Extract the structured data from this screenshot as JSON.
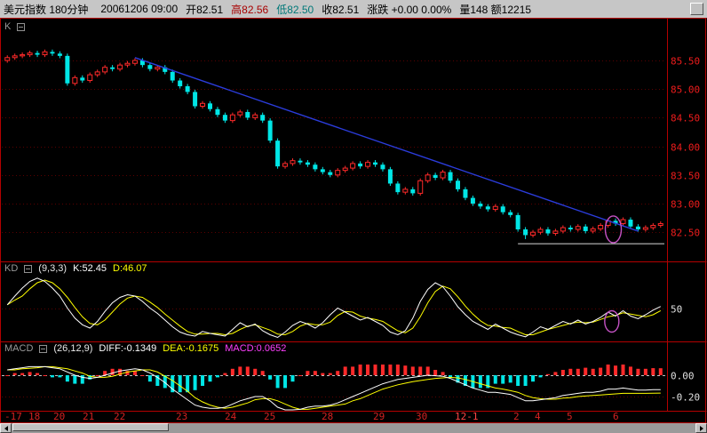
{
  "titlebar": {
    "instrument": "美元指数 180分钟",
    "datetime": "20061206 09:00",
    "open": "开82.51",
    "high": "高82.56",
    "low": "低82.50",
    "close": "收82.51",
    "change": "涨跌 +0.00 0.00%",
    "volume": "量148 额12215"
  },
  "panels": {
    "k": {
      "label": "K"
    },
    "kd": {
      "label": "KD",
      "params": "(9,3,3)",
      "k_value": "K:52.45",
      "d_value": "D:46.07"
    },
    "macd": {
      "label": "MACD",
      "params": "(26,12,9)",
      "diff_value": "DIFF:-0.1349",
      "dea_value": "DEA:-0.1675",
      "macd_value": "MACD:0.0652"
    }
  },
  "colors": {
    "background": "#000000",
    "frame": "#b40000",
    "grid": "#5a0000",
    "up": "#ff2a2a",
    "down": "#00e6e6",
    "trendline": "#2b3cdc",
    "annotation": "#c452c4",
    "k_line": "#ffffff",
    "d_line": "#ffff00",
    "diff_line": "#ffffff",
    "dea_line": "#ffff00",
    "hist_pos": "#ff2a2a",
    "hist_neg": "#00e6e6",
    "axis_text": "#ee1c1c",
    "date_text": "#d42222",
    "date_highlight": "#ff4444",
    "support_line": "#d8d8d8"
  },
  "chart_data": [
    {
      "type": "candlestick",
      "title": "美元指数 180分钟 K线",
      "ylim": [
        82.0,
        86.2
      ],
      "y_axis": [
        {
          "label": "85.50",
          "value": 85.5
        },
        {
          "label": "85.00",
          "value": 85.0
        },
        {
          "label": "84.50",
          "value": 84.5
        },
        {
          "label": "84.00",
          "value": 84.0
        },
        {
          "label": "83.50",
          "value": 83.5
        },
        {
          "label": "83.00",
          "value": 83.0
        },
        {
          "label": "82.50",
          "value": 82.5
        }
      ],
      "candles": [
        [
          85.5,
          85.59,
          85.46,
          85.55
        ],
        [
          85.55,
          85.62,
          85.51,
          85.58
        ],
        [
          85.58,
          85.64,
          85.54,
          85.6
        ],
        [
          85.6,
          85.67,
          85.56,
          85.63
        ],
        [
          85.63,
          85.67,
          85.56,
          85.6
        ],
        [
          85.6,
          85.69,
          85.56,
          85.65
        ],
        [
          85.65,
          85.69,
          85.58,
          85.62
        ],
        [
          85.62,
          85.66,
          85.54,
          85.58
        ],
        [
          85.58,
          85.62,
          85.06,
          85.1
        ],
        [
          85.1,
          85.24,
          85.06,
          85.2
        ],
        [
          85.2,
          85.24,
          85.11,
          85.15
        ],
        [
          85.15,
          85.29,
          85.11,
          85.25
        ],
        [
          85.25,
          85.34,
          85.21,
          85.3
        ],
        [
          85.3,
          85.42,
          85.26,
          85.38
        ],
        [
          85.38,
          85.42,
          85.31,
          85.35
        ],
        [
          85.35,
          85.46,
          85.31,
          85.42
        ],
        [
          85.42,
          85.49,
          85.38,
          85.45
        ],
        [
          85.45,
          85.54,
          85.41,
          85.5
        ],
        [
          85.5,
          85.54,
          85.38,
          85.42
        ],
        [
          85.42,
          85.46,
          85.31,
          85.35
        ],
        [
          85.35,
          85.42,
          85.31,
          85.38
        ],
        [
          85.38,
          85.42,
          85.26,
          85.3
        ],
        [
          85.3,
          85.34,
          85.11,
          85.15
        ],
        [
          85.15,
          85.19,
          85.01,
          85.05
        ],
        [
          85.05,
          85.09,
          84.91,
          84.95
        ],
        [
          84.95,
          84.99,
          84.66,
          84.7
        ],
        [
          84.7,
          84.79,
          84.66,
          84.75
        ],
        [
          84.75,
          84.79,
          84.61,
          84.65
        ],
        [
          84.65,
          84.69,
          84.51,
          84.55
        ],
        [
          84.55,
          84.59,
          84.41,
          84.45
        ],
        [
          84.45,
          84.59,
          84.41,
          84.55
        ],
        [
          84.55,
          84.64,
          84.51,
          84.6
        ],
        [
          84.6,
          84.64,
          84.46,
          84.5
        ],
        [
          84.5,
          84.59,
          84.46,
          84.55
        ],
        [
          84.55,
          84.59,
          84.41,
          84.45
        ],
        [
          84.45,
          84.49,
          84.06,
          84.1
        ],
        [
          84.1,
          84.14,
          83.61,
          83.65
        ],
        [
          83.65,
          83.74,
          83.61,
          83.7
        ],
        [
          83.7,
          83.79,
          83.66,
          83.75
        ],
        [
          83.75,
          83.79,
          83.68,
          83.72
        ],
        [
          83.72,
          83.76,
          83.64,
          83.68
        ],
        [
          83.68,
          83.72,
          83.56,
          83.6
        ],
        [
          83.6,
          83.64,
          83.51,
          83.55
        ],
        [
          83.55,
          83.59,
          83.46,
          83.5
        ],
        [
          83.5,
          83.62,
          83.46,
          83.58
        ],
        [
          83.58,
          83.66,
          83.54,
          83.62
        ],
        [
          83.62,
          83.74,
          83.58,
          83.7
        ],
        [
          83.7,
          83.74,
          83.61,
          83.65
        ],
        [
          83.65,
          83.76,
          83.61,
          83.72
        ],
        [
          83.72,
          83.76,
          83.64,
          83.68
        ],
        [
          83.68,
          83.72,
          83.56,
          83.6
        ],
        [
          83.6,
          83.64,
          83.31,
          83.35
        ],
        [
          83.35,
          83.39,
          83.16,
          83.2
        ],
        [
          83.2,
          83.29,
          83.16,
          83.25
        ],
        [
          83.25,
          83.29,
          83.14,
          83.18
        ],
        [
          83.18,
          83.44,
          83.14,
          83.4
        ],
        [
          83.4,
          83.54,
          83.36,
          83.5
        ],
        [
          83.5,
          83.54,
          83.41,
          83.45
        ],
        [
          83.45,
          83.59,
          83.41,
          83.55
        ],
        [
          83.55,
          83.59,
          83.36,
          83.4
        ],
        [
          83.4,
          83.44,
          83.21,
          83.25
        ],
        [
          83.25,
          83.29,
          83.06,
          83.1
        ],
        [
          83.1,
          83.14,
          82.96,
          83.0
        ],
        [
          83.0,
          83.04,
          82.91,
          82.95
        ],
        [
          82.95,
          82.99,
          82.86,
          82.9
        ],
        [
          82.9,
          82.99,
          82.86,
          82.95
        ],
        [
          82.95,
          82.99,
          82.81,
          82.85
        ],
        [
          82.85,
          82.89,
          82.76,
          82.8
        ],
        [
          82.8,
          82.84,
          82.51,
          82.55
        ],
        [
          82.55,
          82.59,
          82.38,
          82.45
        ],
        [
          82.45,
          82.54,
          82.41,
          82.5
        ],
        [
          82.5,
          82.59,
          82.46,
          82.55
        ],
        [
          82.55,
          82.59,
          82.44,
          82.48
        ],
        [
          82.48,
          82.56,
          82.44,
          82.52
        ],
        [
          82.52,
          82.62,
          82.48,
          82.58
        ],
        [
          82.58,
          82.62,
          82.51,
          82.55
        ],
        [
          82.55,
          82.64,
          82.51,
          82.6
        ],
        [
          82.6,
          82.64,
          82.48,
          82.52
        ],
        [
          82.52,
          82.6,
          82.48,
          82.56
        ],
        [
          82.56,
          82.66,
          82.52,
          82.62
        ],
        [
          82.62,
          82.74,
          82.58,
          82.7
        ],
        [
          82.7,
          82.74,
          82.61,
          82.65
        ],
        [
          82.65,
          82.76,
          82.61,
          82.72
        ],
        [
          82.72,
          82.76,
          82.56,
          82.6
        ],
        [
          82.6,
          82.64,
          82.51,
          82.55
        ],
        [
          82.55,
          82.62,
          82.51,
          82.58
        ],
        [
          82.58,
          82.66,
          82.54,
          82.62
        ],
        [
          82.62,
          82.69,
          82.58,
          82.65
        ]
      ],
      "trendline": {
        "from_bar": 17,
        "from_price": 85.55,
        "to_bar": 84,
        "to_price": 82.52
      },
      "support_line": {
        "from_bar": 68,
        "to_bar": 87.5,
        "price": 82.3
      },
      "annotation": {
        "bar": 80.7,
        "price": 82.55,
        "rx": 9,
        "ry": 15
      },
      "x_ticks": [
        {
          "label": "-17",
          "x": 5
        },
        {
          "label": "18",
          "x": 32
        },
        {
          "label": "20",
          "x": 60
        },
        {
          "label": "21",
          "x": 93
        },
        {
          "label": "22",
          "x": 128
        },
        {
          "label": "23",
          "x": 198
        },
        {
          "label": "24",
          "x": 253
        },
        {
          "label": "25",
          "x": 297
        },
        {
          "label": "28",
          "x": 362
        },
        {
          "label": "29",
          "x": 420
        },
        {
          "label": "30",
          "x": 468
        },
        {
          "label": "12-1",
          "x": 512,
          "highlight": true
        },
        {
          "label": "2",
          "x": 578
        },
        {
          "label": "4",
          "x": 602
        },
        {
          "label": "5",
          "x": 638
        },
        {
          "label": "6",
          "x": 690
        }
      ]
    },
    {
      "type": "line",
      "name": "KD(9,3,3)",
      "range": [
        0,
        100
      ],
      "gridline": 50,
      "axis_label": "50",
      "k": [
        55,
        68,
        80,
        90,
        95,
        90,
        80,
        68,
        50,
        35,
        25,
        20,
        30,
        45,
        58,
        66,
        70,
        68,
        60,
        50,
        42,
        32,
        22,
        14,
        10,
        8,
        15,
        12,
        10,
        8,
        18,
        28,
        22,
        26,
        16,
        10,
        6,
        14,
        24,
        30,
        26,
        20,
        28,
        40,
        50,
        44,
        38,
        32,
        36,
        30,
        24,
        14,
        10,
        16,
        35,
        60,
        78,
        88,
        82,
        68,
        52,
        40,
        30,
        24,
        18,
        26,
        20,
        14,
        10,
        7,
        14,
        22,
        18,
        24,
        30,
        26,
        32,
        26,
        30,
        36,
        44,
        38,
        46,
        38,
        34,
        40,
        47,
        52.45
      ],
      "d": [
        55,
        62,
        68,
        79,
        88,
        92,
        88,
        79,
        66,
        51,
        37,
        27,
        25,
        32,
        44,
        56,
        65,
        68,
        66,
        59,
        51,
        41,
        32,
        23,
        15,
        11,
        11,
        12,
        12,
        10,
        12,
        18,
        23,
        25,
        21,
        17,
        11,
        10,
        15,
        23,
        27,
        25,
        25,
        29,
        39,
        45,
        44,
        38,
        35,
        33,
        30,
        23,
        16,
        13,
        20,
        37,
        58,
        75,
        83,
        79,
        67,
        53,
        41,
        31,
        24,
        23,
        21,
        20,
        15,
        10,
        10,
        14,
        18,
        21,
        24,
        27,
        29,
        28,
        29,
        33,
        37,
        39,
        43,
        41,
        39,
        37,
        40,
        46.07
      ],
      "annotation": {
        "bar": 80.5,
        "value": 30,
        "rx": 8,
        "ry": 12
      }
    },
    {
      "type": "macd",
      "name": "MACD(26,12,9)",
      "hist_rule": "hist = 2*(diff-dea)",
      "axis": [
        {
          "label": "0.00",
          "value": 0
        },
        {
          "label": "-0.20",
          "value": -0.2
        }
      ],
      "diff": [
        0.05,
        0.06,
        0.07,
        0.08,
        0.08,
        0.08,
        0.07,
        0.06,
        0.03,
        0,
        -0.02,
        -0.03,
        -0.02,
        0,
        0.02,
        0.04,
        0.05,
        0.06,
        0.05,
        0.02,
        -0.02,
        -0.07,
        -0.13,
        -0.18,
        -0.23,
        -0.28,
        -0.3,
        -0.31,
        -0.31,
        -0.3,
        -0.27,
        -0.24,
        -0.22,
        -0.2,
        -0.2,
        -0.24,
        -0.3,
        -0.33,
        -0.33,
        -0.32,
        -0.3,
        -0.29,
        -0.29,
        -0.28,
        -0.26,
        -0.23,
        -0.2,
        -0.17,
        -0.14,
        -0.11,
        -0.08,
        -0.06,
        -0.04,
        -0.03,
        -0.02,
        -0.01,
        0,
        -0.005,
        -0.01,
        -0.03,
        -0.06,
        -0.09,
        -0.12,
        -0.14,
        -0.16,
        -0.16,
        -0.17,
        -0.18,
        -0.21,
        -0.24,
        -0.24,
        -0.23,
        -0.22,
        -0.21,
        -0.19,
        -0.18,
        -0.17,
        -0.16,
        -0.16,
        -0.15,
        -0.13,
        -0.13,
        -0.12,
        -0.13,
        -0.14,
        -0.14,
        -0.135,
        -0.1349
      ],
      "dea": [
        0.05,
        0.05,
        0.06,
        0.065,
        0.07,
        0.08,
        0.08,
        0.07,
        0.06,
        0.04,
        0.02,
        -0.01,
        -0.02,
        -0.02,
        -0.01,
        0.01,
        0.03,
        0.04,
        0.05,
        0.05,
        0.03,
        -0.01,
        -0.05,
        -0.1,
        -0.15,
        -0.21,
        -0.25,
        -0.28,
        -0.3,
        -0.31,
        -0.3,
        -0.28,
        -0.26,
        -0.23,
        -0.22,
        -0.22,
        -0.24,
        -0.27,
        -0.3,
        -0.32,
        -0.32,
        -0.31,
        -0.3,
        -0.29,
        -0.28,
        -0.27,
        -0.24,
        -0.22,
        -0.19,
        -0.16,
        -0.13,
        -0.11,
        -0.09,
        -0.075,
        -0.06,
        -0.05,
        -0.04,
        -0.03,
        -0.025,
        -0.02,
        -0.025,
        -0.04,
        -0.06,
        -0.08,
        -0.1,
        -0.12,
        -0.13,
        -0.145,
        -0.16,
        -0.19,
        -0.21,
        -0.22,
        -0.225,
        -0.225,
        -0.215,
        -0.21,
        -0.2,
        -0.195,
        -0.19,
        -0.185,
        -0.18,
        -0.175,
        -0.17,
        -0.17,
        -0.17,
        -0.17,
        -0.168,
        -0.1675
      ]
    }
  ]
}
